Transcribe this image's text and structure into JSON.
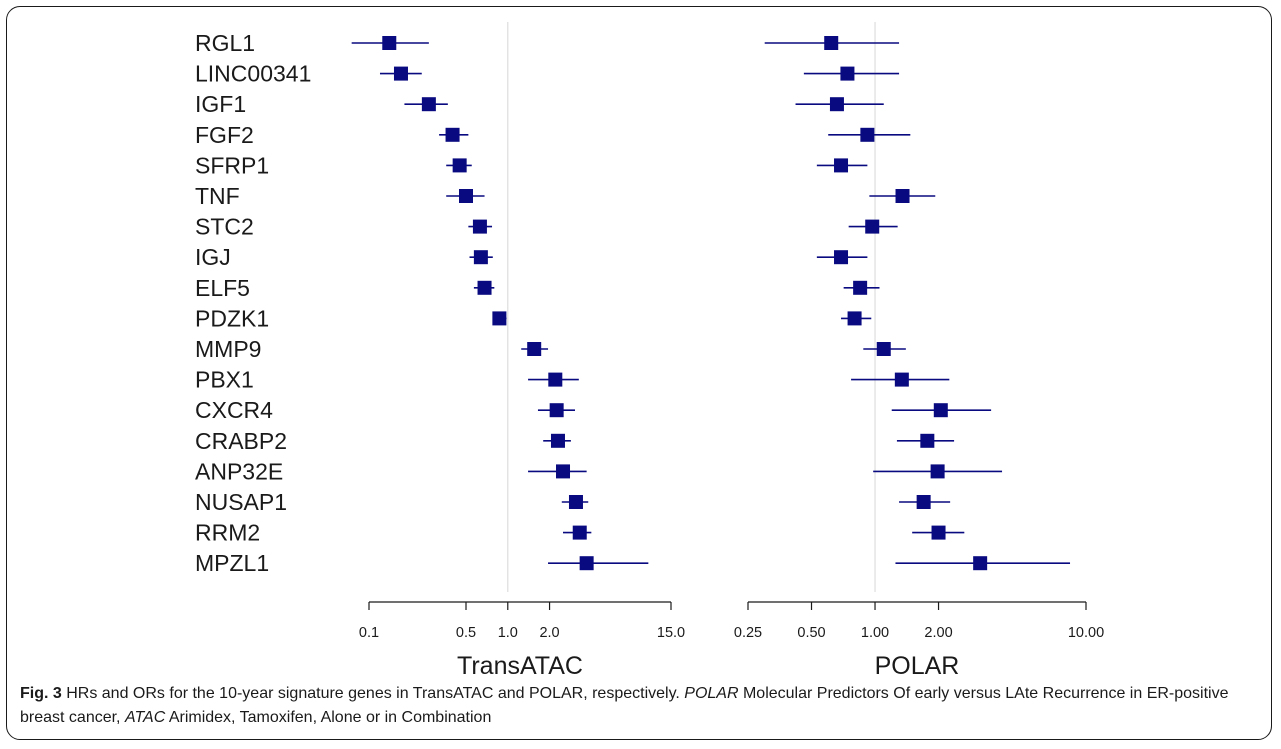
{
  "caption": {
    "label": "Fig. 3",
    "text1": " HRs and ORs for the 10-year signature genes in TransATAC and POLAR, respectively. ",
    "term1": "POLAR",
    "text2": " Molecular Predictors Of early versus LAte Recurrence in ER-positive breast cancer, ",
    "term2": "ATAC",
    "text3": " Arimidex, Tamoxifen, Alone or in Combination"
  },
  "colors": {
    "marker": "#0a0a80",
    "ci_line": "#0a0a80",
    "reference_line": "#dddddd",
    "axis": "#1a1a1a",
    "text": "#1a1a1a"
  },
  "chart_data": [
    {
      "type": "scatter",
      "title": "TransATAC",
      "scale": "log",
      "reference_value": 1.0,
      "xlim": [
        0.1,
        15.0
      ],
      "x_ticks": [
        0.1,
        0.5,
        1.0,
        2.0,
        15.0
      ],
      "x_tick_labels": [
        "0.1",
        "0.5",
        "1.0",
        "2.0",
        "15.0"
      ],
      "genes": [
        "RGL1",
        "LINC00341",
        "IGF1",
        "FGF2",
        "SFRP1",
        "TNF",
        "STC2",
        "IGJ",
        "ELF5",
        "PDZK1",
        "MMP9",
        "PBX1",
        "CXCR4",
        "CRABP2",
        "ANP32E",
        "NUSAP1",
        "RRM2",
        "MPZL1"
      ],
      "estimate": [
        0.14,
        0.17,
        0.27,
        0.4,
        0.45,
        0.5,
        0.63,
        0.64,
        0.68,
        0.87,
        1.55,
        2.2,
        2.25,
        2.3,
        2.5,
        3.1,
        3.3,
        3.7
      ],
      "ci_low": [
        0.075,
        0.12,
        0.18,
        0.32,
        0.36,
        0.36,
        0.52,
        0.53,
        0.57,
        0.78,
        1.25,
        1.4,
        1.65,
        1.8,
        1.4,
        2.45,
        2.5,
        1.95
      ],
      "ci_high": [
        0.27,
        0.24,
        0.37,
        0.52,
        0.55,
        0.68,
        0.77,
        0.78,
        0.8,
        0.98,
        1.95,
        3.25,
        3.05,
        2.85,
        3.7,
        3.8,
        4.0,
        10.3
      ]
    },
    {
      "type": "scatter",
      "title": "POLAR",
      "scale": "log",
      "reference_value": 1.0,
      "xlim": [
        0.25,
        10.0
      ],
      "x_ticks": [
        0.25,
        0.5,
        1.0,
        2.0,
        10.0
      ],
      "x_tick_labels": [
        "0.25",
        "0.50",
        "1.00",
        "2.00",
        "10.00"
      ],
      "genes": [
        "RGL1",
        "LINC00341",
        "IGF1",
        "FGF2",
        "SFRP1",
        "TNF",
        "STC2",
        "IGJ",
        "ELF5",
        "PDZK1",
        "MMP9",
        "PBX1",
        "CXCR4",
        "CRABP2",
        "ANP32E",
        "NUSAP1",
        "RRM2",
        "MPZL1"
      ],
      "estimate": [
        0.62,
        0.74,
        0.66,
        0.92,
        0.69,
        1.35,
        0.97,
        0.69,
        0.85,
        0.8,
        1.1,
        1.34,
        2.05,
        1.77,
        1.98,
        1.7,
        2.0,
        3.15
      ],
      "ci_low": [
        0.3,
        0.46,
        0.42,
        0.6,
        0.53,
        0.94,
        0.75,
        0.53,
        0.71,
        0.69,
        0.88,
        0.77,
        1.2,
        1.27,
        0.98,
        1.3,
        1.5,
        1.25
      ],
      "ci_high": [
        1.3,
        1.3,
        1.1,
        1.47,
        0.92,
        1.93,
        1.28,
        0.92,
        1.05,
        0.96,
        1.4,
        2.25,
        3.55,
        2.37,
        4.0,
        2.27,
        2.65,
        8.4
      ]
    }
  ]
}
